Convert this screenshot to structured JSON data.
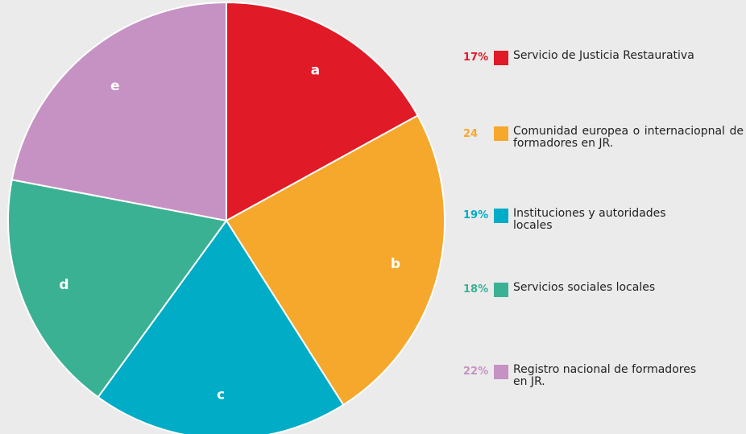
{
  "chart_data": {
    "type": "pie",
    "categories": [
      "Servicio de Justicia Restaurativa",
      "Comunidad europea o internaciopnal de formadores en JR.",
      "Instituciones y autoridades locales",
      "Servicios sociales locales",
      "Registro nacional de formadores en JR."
    ],
    "values": [
      17,
      24,
      19,
      18,
      22
    ],
    "value_labels": [
      "17%",
      "24",
      "19%",
      "18%",
      "22%"
    ],
    "slice_labels": [
      "a",
      "b",
      "c",
      "d",
      "e"
    ],
    "colors": [
      "#e11a27",
      "#f5a82c",
      "#00acc6",
      "#3bb194",
      "#c692c3"
    ]
  }
}
